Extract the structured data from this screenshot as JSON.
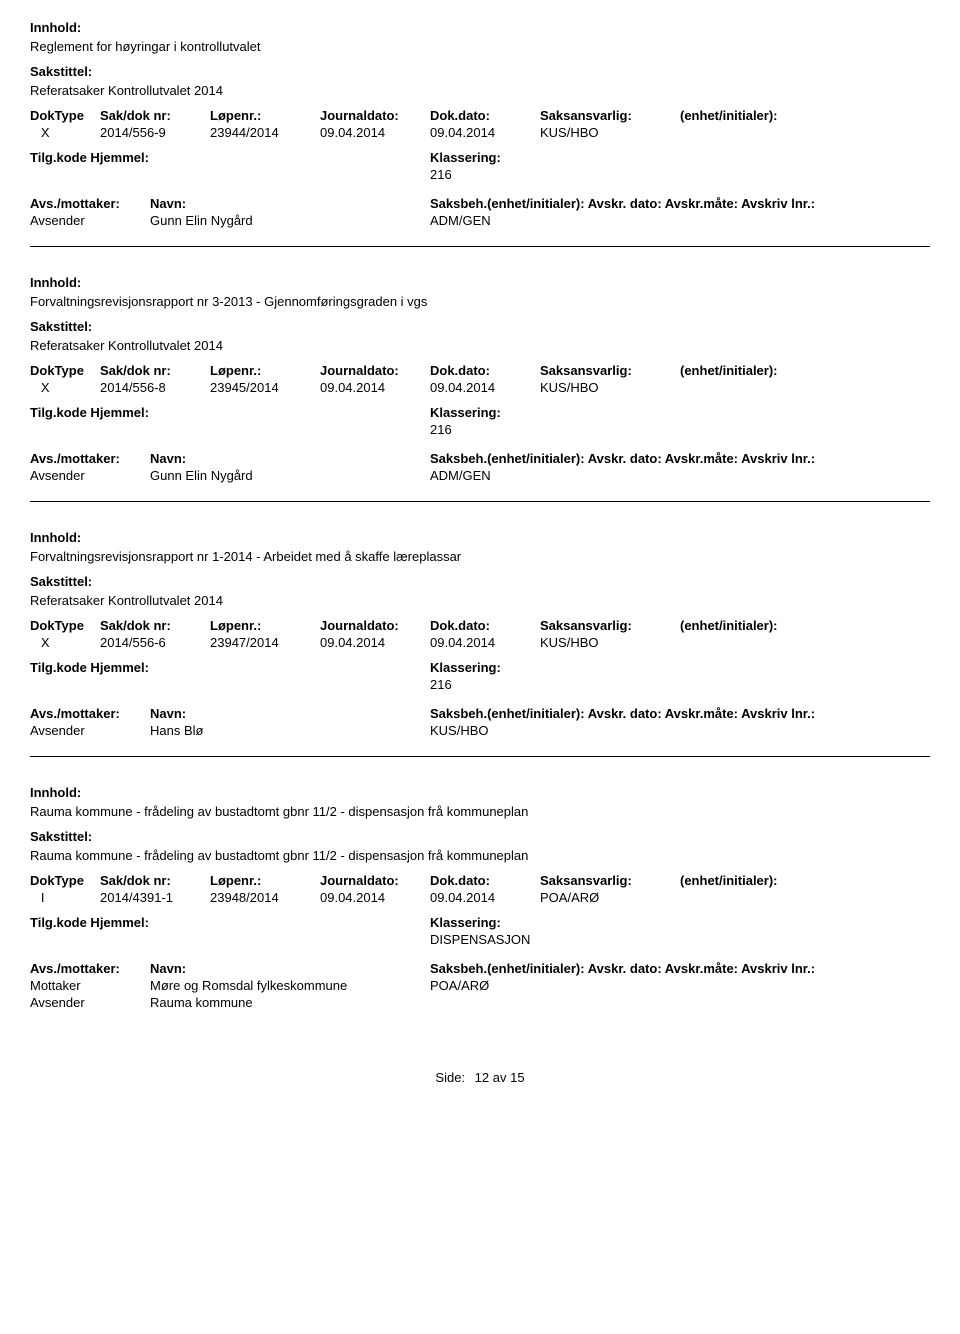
{
  "labels": {
    "innhold": "Innhold:",
    "sakstittel": "Sakstittel:",
    "doktype": "DokType",
    "sakdok": "Sak/dok nr:",
    "lopenr": "Løpenr.:",
    "jdato": "Journaldato:",
    "ddato": "Dok.dato:",
    "saksansvarlig": "Saksansvarlig:",
    "enhet": "(enhet/initialer):",
    "tilg": "Tilg.kode",
    "hjemmel": "Hjemmel:",
    "klassering": "Klassering:",
    "avs_mottaker": "Avs./mottaker:",
    "navn": "Navn:",
    "saksbeh": "Saksbeh.(enhet/initialer):",
    "avskr_dato": "Avskr. dato:",
    "avskr_mate": "Avskr.måte:",
    "avskriv_lnr": "Avskriv lnr.:",
    "avsender": "Avsender",
    "mottaker": "Mottaker"
  },
  "records": [
    {
      "innhold": "Reglement for høyringar i kontrollutvalet",
      "sakstittel": "Referatsaker Kontrollutvalet 2014",
      "doktype": "X",
      "sakdok": "2014/556-9",
      "lopenr": "23944/2014",
      "jdato": "09.04.2014",
      "ddato": "09.04.2014",
      "saksansvarlig": "KUS/HBO",
      "klassering": "216",
      "parties": [
        {
          "type": "Avsender",
          "name": "Gunn Elin Nygård",
          "saksbeh": "ADM/GEN"
        }
      ]
    },
    {
      "innhold": "Forvaltningsrevisjonsrapport nr 3-2013 - Gjennomføringsgraden i vgs",
      "sakstittel": "Referatsaker Kontrollutvalet 2014",
      "doktype": "X",
      "sakdok": "2014/556-8",
      "lopenr": "23945/2014",
      "jdato": "09.04.2014",
      "ddato": "09.04.2014",
      "saksansvarlig": "KUS/HBO",
      "klassering": "216",
      "parties": [
        {
          "type": "Avsender",
          "name": "Gunn Elin Nygård",
          "saksbeh": "ADM/GEN"
        }
      ]
    },
    {
      "innhold": "Forvaltningsrevisjonsrapport nr 1-2014 - Arbeidet med å skaffe læreplassar",
      "sakstittel": "Referatsaker Kontrollutvalet 2014",
      "doktype": "X",
      "sakdok": "2014/556-6",
      "lopenr": "23947/2014",
      "jdato": "09.04.2014",
      "ddato": "09.04.2014",
      "saksansvarlig": "KUS/HBO",
      "klassering": "216",
      "parties": [
        {
          "type": "Avsender",
          "name": "Hans Blø",
          "saksbeh": "KUS/HBO"
        }
      ]
    },
    {
      "innhold": "Rauma kommune - frådeling av bustadtomt gbnr 11/2 - dispensasjon frå kommuneplan",
      "sakstittel": "Rauma kommune - frådeling av bustadtomt gbnr 11/2 - dispensasjon frå kommuneplan",
      "doktype": "I",
      "sakdok": "2014/4391-1",
      "lopenr": "23948/2014",
      "jdato": "09.04.2014",
      "ddato": "09.04.2014",
      "saksansvarlig": "POA/ARØ",
      "klassering": "DISPENSASJON",
      "parties": [
        {
          "type": "Mottaker",
          "name": "Møre og Romsdal fylkeskommune",
          "saksbeh": "POA/ARØ"
        },
        {
          "type": "Avsender",
          "name": "Rauma kommune",
          "saksbeh": ""
        }
      ]
    }
  ],
  "footer": {
    "label": "Side:",
    "page": "12",
    "sep": "av",
    "total": "15"
  }
}
